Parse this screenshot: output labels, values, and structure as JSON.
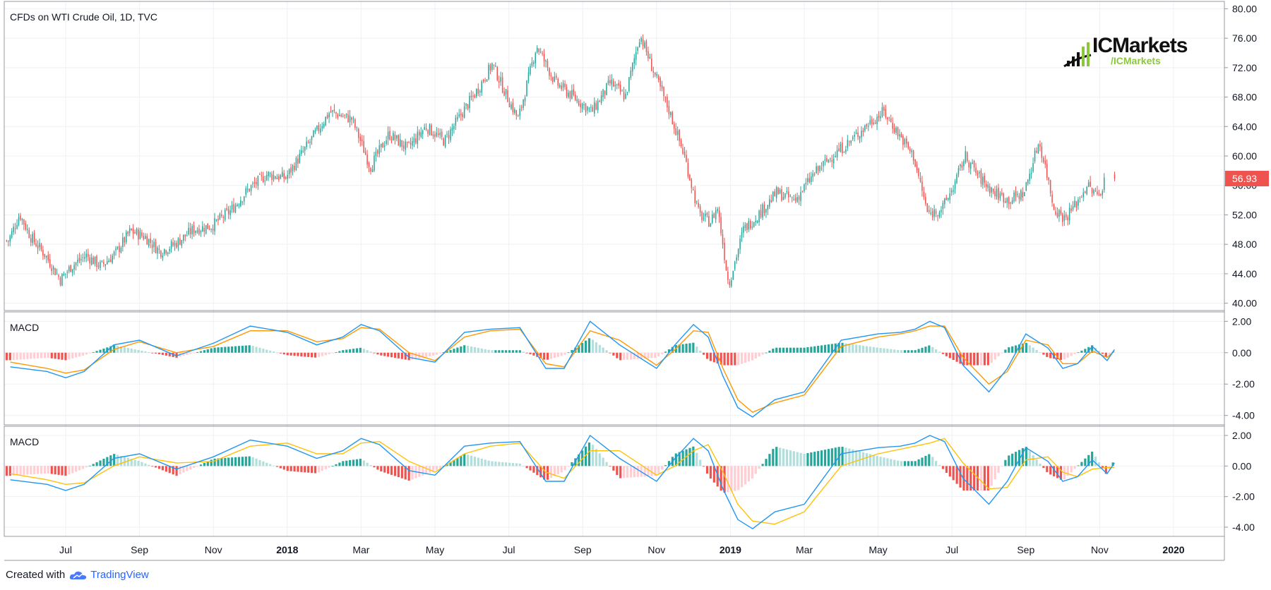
{
  "footer": {
    "created_with": "Created with",
    "tradingview": "TradingView"
  },
  "logo": {
    "brand": "ICMarkets",
    "handle": "/ICMarkets"
  },
  "colors": {
    "up": "#26a69a",
    "down": "#ef5350",
    "macd_line": "#2196f3",
    "signal_line": "#ff9800",
    "signal_line_2": "#ffc107",
    "hist_up_strong": "#26a69a",
    "hist_up_weak": "#b2dfdb",
    "hist_down_strong": "#ef5350",
    "hist_down_weak": "#ffcdd2",
    "price_tag": "#ef5350",
    "grid": "#eef0f3"
  },
  "chart_data": [
    {
      "type": "candlestick",
      "title": "CFDs on WTI Crude Oil, 1D, TVC",
      "ylim": [
        39,
        81
      ],
      "yticks": [
        "40.00",
        "44.00",
        "48.00",
        "52.00",
        "56.00",
        "60.00",
        "64.00",
        "68.00",
        "72.00",
        "76.00",
        "80.00"
      ],
      "last_price": "56.93",
      "xticks": [
        "Jul",
        "Sep",
        "Nov",
        "2018",
        "Mar",
        "May",
        "Jul",
        "Sep",
        "Nov",
        "2019",
        "Mar",
        "May",
        "Jul",
        "Sep",
        "Nov",
        "2020"
      ],
      "x_tick_positions_months": [
        0,
        2,
        4,
        6,
        8,
        10,
        12,
        14,
        16,
        18,
        20,
        22,
        24,
        26,
        28,
        30
      ],
      "bold_ticks": [
        "2018",
        "2019",
        "2020"
      ],
      "price_path_months": [
        -1.5,
        -1.2,
        -0.9,
        -0.5,
        -0.1,
        0.2,
        0.6,
        1.0,
        1.4,
        1.8,
        2.2,
        2.6,
        3.0,
        3.5,
        4.0,
        4.5,
        5.0,
        5.5,
        6.0,
        6.4,
        6.8,
        7.2,
        7.8,
        8.3,
        8.8,
        9.3,
        9.8,
        10.3,
        10.8,
        11.2,
        11.6,
        12.0,
        12.3,
        12.8,
        13.3,
        13.8,
        14.3,
        14.8,
        15.2,
        15.6,
        16.0,
        16.4,
        16.8,
        17.2,
        17.5,
        17.7,
        18.0,
        18.4,
        18.8,
        19.3,
        19.8,
        20.3,
        20.8,
        21.3,
        21.8,
        22.2,
        22.6,
        23.0,
        23.4,
        23.8,
        24.1,
        24.4,
        24.8,
        25.2,
        25.6,
        26.0,
        26.4,
        26.6,
        26.8,
        27.1,
        27.4,
        27.7,
        28.0,
        28.2,
        28.4
      ],
      "price_path_values": [
        48.5,
        52.1,
        49.0,
        46.5,
        43.2,
        45.0,
        46.5,
        45.0,
        46.8,
        49.8,
        49.0,
        47.0,
        48.0,
        50.0,
        50.5,
        52.5,
        55.5,
        57.5,
        57.0,
        60.0,
        63.0,
        66.0,
        65.0,
        58.5,
        63.0,
        61.0,
        64.0,
        62.0,
        66.0,
        69.0,
        72.5,
        68.0,
        65.0,
        75.0,
        70.0,
        68.0,
        66.0,
        70.0,
        68.0,
        76.5,
        71.0,
        66.0,
        60.0,
        52.0,
        51.0,
        53.0,
        42.5,
        50.0,
        52.0,
        55.0,
        54.0,
        57.5,
        60.0,
        62.0,
        64.5,
        66.0,
        63.0,
        60.0,
        52.0,
        53.0,
        56.0,
        60.0,
        57.0,
        55.0,
        54.0,
        55.0,
        62.0,
        58.0,
        53.0,
        51.5,
        53.5,
        56.0,
        54.5,
        56.93
      ]
    },
    {
      "type": "line",
      "title": "MACD",
      "ylim": [
        -4.6,
        2.6
      ],
      "yticks": [
        "2.00",
        "0.00",
        "-2.00",
        "-4.00"
      ],
      "series": [
        {
          "role": "macd",
          "months": [
            -1.5,
            -0.5,
            0.0,
            0.5,
            1.3,
            2.0,
            3.0,
            4.0,
            5.0,
            6.0,
            6.8,
            7.5,
            8.0,
            8.5,
            9.3,
            10.0,
            10.8,
            11.5,
            12.3,
            13.0,
            13.5,
            14.2,
            15.0,
            16.0,
            16.5,
            17.0,
            17.4,
            17.8,
            18.2,
            18.6,
            19.2,
            20.0,
            21.0,
            22.0,
            22.6,
            23.0,
            23.4,
            23.8,
            24.3,
            25.0,
            25.5,
            26.0,
            26.6,
            27.0,
            27.4,
            27.8,
            28.2,
            28.4
          ],
          "values": [
            -0.9,
            -1.2,
            -1.6,
            -1.2,
            0.5,
            0.8,
            -0.2,
            0.6,
            1.7,
            1.3,
            0.5,
            1.0,
            1.8,
            1.4,
            -0.3,
            -0.6,
            1.3,
            1.5,
            1.6,
            -1.0,
            -1.0,
            2.0,
            0.5,
            -1.0,
            0.5,
            1.8,
            1.0,
            -1.5,
            -3.5,
            -4.1,
            -3.0,
            -2.5,
            0.8,
            1.2,
            1.3,
            1.5,
            2.0,
            1.6,
            -0.8,
            -2.5,
            -1.0,
            1.2,
            0.3,
            -1.0,
            -0.7,
            0.4,
            -0.5,
            0.2
          ]
        },
        {
          "role": "signal",
          "months": [
            -1.5,
            -0.5,
            0.0,
            0.5,
            1.3,
            2.0,
            3.0,
            4.0,
            5.0,
            6.0,
            6.8,
            7.5,
            8.0,
            8.5,
            9.3,
            10.0,
            10.8,
            11.5,
            12.3,
            13.0,
            13.5,
            14.2,
            15.0,
            16.0,
            16.5,
            17.0,
            17.4,
            17.8,
            18.2,
            18.6,
            19.2,
            20.0,
            21.0,
            22.0,
            22.6,
            23.0,
            23.4,
            23.8,
            24.3,
            25.0,
            25.5,
            26.0,
            26.6,
            27.0,
            27.4,
            27.8,
            28.2,
            28.4
          ],
          "values": [
            -0.6,
            -1.0,
            -1.3,
            -1.1,
            0.2,
            0.7,
            0.0,
            0.4,
            1.4,
            1.4,
            0.7,
            0.9,
            1.6,
            1.5,
            0.0,
            -0.5,
            1.0,
            1.4,
            1.5,
            -0.7,
            -0.9,
            1.4,
            0.8,
            -0.8,
            0.2,
            1.4,
            1.3,
            -1.0,
            -3.0,
            -3.8,
            -3.2,
            -2.7,
            0.4,
            1.0,
            1.2,
            1.4,
            1.7,
            1.7,
            -0.3,
            -2.0,
            -1.2,
            0.8,
            0.5,
            -0.7,
            -0.7,
            0.1,
            -0.3,
            0.1
          ]
        }
      ]
    },
    {
      "type": "line",
      "title": "MACD",
      "ylim": [
        -4.6,
        2.6
      ],
      "yticks": [
        "2.00",
        "0.00",
        "-2.00",
        "-4.00"
      ],
      "series": [
        {
          "role": "macd",
          "months": [
            -1.5,
            -0.5,
            0.0,
            0.5,
            1.3,
            2.0,
            3.0,
            4.0,
            5.0,
            6.0,
            6.8,
            7.5,
            8.0,
            8.5,
            9.3,
            10.0,
            10.8,
            11.5,
            12.3,
            13.0,
            13.5,
            14.2,
            15.0,
            16.0,
            16.5,
            17.0,
            17.4,
            17.8,
            18.2,
            18.6,
            19.2,
            20.0,
            21.0,
            22.0,
            22.6,
            23.0,
            23.4,
            23.8,
            24.3,
            25.0,
            25.5,
            26.0,
            26.6,
            27.0,
            27.4,
            27.8,
            28.2,
            28.4
          ],
          "values": [
            -0.9,
            -1.2,
            -1.6,
            -1.2,
            0.5,
            0.8,
            -0.2,
            0.6,
            1.7,
            1.3,
            0.5,
            1.0,
            1.8,
            1.4,
            -0.3,
            -0.6,
            1.3,
            1.5,
            1.6,
            -1.0,
            -1.0,
            2.0,
            0.5,
            -1.0,
            0.5,
            1.8,
            1.0,
            -1.5,
            -3.5,
            -4.1,
            -3.0,
            -2.5,
            0.8,
            1.2,
            1.3,
            1.5,
            2.0,
            1.6,
            -0.8,
            -2.5,
            -1.0,
            1.2,
            0.3,
            -1.0,
            -0.7,
            0.4,
            -0.5,
            0.2
          ]
        },
        {
          "role": "signal",
          "months": [
            -1.5,
            -0.5,
            0.0,
            0.5,
            1.3,
            2.0,
            3.0,
            4.0,
            5.0,
            6.0,
            6.8,
            7.5,
            8.0,
            8.5,
            9.3,
            10.0,
            10.8,
            11.5,
            12.3,
            13.0,
            13.5,
            14.2,
            15.0,
            16.0,
            16.5,
            17.0,
            17.4,
            17.8,
            18.2,
            18.6,
            19.2,
            20.0,
            21.0,
            22.0,
            22.6,
            23.0,
            23.4,
            23.8,
            24.3,
            25.0,
            25.5,
            26.0,
            26.6,
            27.0,
            27.4,
            27.8,
            28.2,
            28.4
          ],
          "values": [
            -0.5,
            -0.9,
            -1.2,
            -1.1,
            0.0,
            0.6,
            0.2,
            0.3,
            1.3,
            1.5,
            0.8,
            0.8,
            1.5,
            1.6,
            0.3,
            -0.4,
            0.8,
            1.3,
            1.5,
            -0.4,
            -0.8,
            1.0,
            1.0,
            -0.6,
            0.0,
            1.0,
            1.4,
            -0.4,
            -2.5,
            -3.6,
            -3.8,
            -3.0,
            0.0,
            0.8,
            1.1,
            1.3,
            1.5,
            1.8,
            0.2,
            -1.5,
            -1.4,
            0.4,
            0.6,
            -0.4,
            -0.7,
            -0.2,
            -0.1,
            -0.1
          ]
        }
      ]
    }
  ]
}
